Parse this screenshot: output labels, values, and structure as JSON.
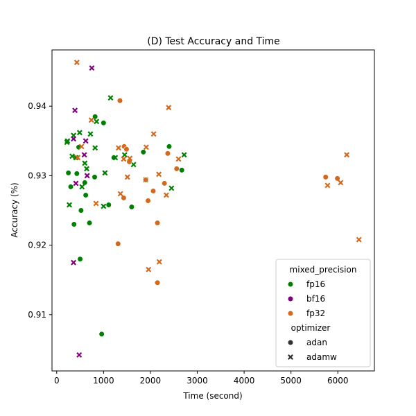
{
  "chart_data": {
    "type": "scatter",
    "title": "(D) Test Accuracy and Time",
    "xlabel": "Time (second)",
    "ylabel": "Accuracy (%)",
    "xlim": [
      -100,
      6780
    ],
    "ylim": [
      0.9019,
      0.9481
    ],
    "xticks": [
      0,
      1000,
      2000,
      3000,
      4000,
      5000,
      6000
    ],
    "xtick_labels": [
      "0",
      "1000",
      "2000",
      "3000",
      "4000",
      "5000",
      "6000"
    ],
    "yticks": [
      0.91,
      0.92,
      0.93,
      0.94
    ],
    "ytick_labels": [
      "0.91",
      "0.92",
      "0.93",
      "0.94"
    ],
    "grid": false,
    "legend_position": "lower-right",
    "legend": {
      "hue_title": "mixed_precision",
      "hue_entries": [
        {
          "name": "fp16",
          "color": "#008000"
        },
        {
          "name": "bf16",
          "color": "#800080"
        },
        {
          "name": "fp32",
          "color": "#d2691e"
        }
      ],
      "style_title": "optimizer",
      "style_entries": [
        {
          "name": "adan",
          "marker": "circle"
        },
        {
          "name": "adamw",
          "marker": "x"
        }
      ]
    },
    "series": [
      {
        "name": "fp16",
        "optimizer": "adan",
        "points": [
          [
            250,
            0.9304
          ],
          [
            300,
            0.9284
          ],
          [
            370,
            0.923
          ],
          [
            430,
            0.9303
          ],
          [
            470,
            0.9341
          ],
          [
            500,
            0.918
          ],
          [
            520,
            0.925
          ],
          [
            600,
            0.929
          ],
          [
            620,
            0.9272
          ],
          [
            700,
            0.9232
          ],
          [
            810,
            0.9298
          ],
          [
            820,
            0.9385
          ],
          [
            1000,
            0.9376
          ],
          [
            1110,
            0.9258
          ],
          [
            1220,
            0.9326
          ],
          [
            1600,
            0.9255
          ],
          [
            1850,
            0.9334
          ],
          [
            2400,
            0.9342
          ],
          [
            2670,
            0.9308
          ],
          [
            960,
            0.9072
          ]
        ]
      },
      {
        "name": "fp16",
        "optimizer": "adamw",
        "points": [
          [
            220,
            0.9348
          ],
          [
            230,
            0.935
          ],
          [
            270,
            0.9258
          ],
          [
            330,
            0.9328
          ],
          [
            360,
            0.9358
          ],
          [
            410,
            0.9326
          ],
          [
            490,
            0.9362
          ],
          [
            540,
            0.9284
          ],
          [
            600,
            0.9318
          ],
          [
            640,
            0.931
          ],
          [
            720,
            0.936
          ],
          [
            820,
            0.934
          ],
          [
            850,
            0.9378
          ],
          [
            1000,
            0.9256
          ],
          [
            1030,
            0.9304
          ],
          [
            1150,
            0.9412
          ],
          [
            1250,
            0.9326
          ],
          [
            1450,
            0.933
          ],
          [
            1640,
            0.9316
          ],
          [
            1900,
            0.9294
          ],
          [
            2450,
            0.9282
          ],
          [
            2720,
            0.933
          ]
        ]
      },
      {
        "name": "bf16",
        "optimizer": "adamw",
        "points": [
          [
            360,
            0.9175
          ],
          [
            360,
            0.9353
          ],
          [
            390,
            0.9394
          ],
          [
            410,
            0.9289
          ],
          [
            480,
            0.9042
          ],
          [
            590,
            0.933
          ],
          [
            620,
            0.935
          ],
          [
            650,
            0.93
          ],
          [
            750,
            0.9455
          ]
        ]
      },
      {
        "name": "fp32",
        "optimizer": "adan",
        "points": [
          [
            1310,
            0.9202
          ],
          [
            1350,
            0.9408
          ],
          [
            1430,
            0.9268
          ],
          [
            1440,
            0.9342
          ],
          [
            1490,
            0.9338
          ],
          [
            1550,
            0.932
          ],
          [
            1900,
            0.9294
          ],
          [
            1950,
            0.9264
          ],
          [
            2060,
            0.9278
          ],
          [
            2150,
            0.9232
          ],
          [
            2150,
            0.9146
          ],
          [
            2300,
            0.9289
          ],
          [
            2370,
            0.9332
          ],
          [
            2560,
            0.931
          ],
          [
            5740,
            0.9298
          ],
          [
            5990,
            0.9296
          ]
        ]
      },
      {
        "name": "fp32",
        "optimizer": "adamw",
        "points": [
          [
            430,
            0.9463
          ],
          [
            450,
            0.9326
          ],
          [
            530,
            0.9342
          ],
          [
            740,
            0.938
          ],
          [
            840,
            0.926
          ],
          [
            1320,
            0.934
          ],
          [
            1360,
            0.9274
          ],
          [
            1430,
            0.9324
          ],
          [
            1510,
            0.9298
          ],
          [
            1560,
            0.9325
          ],
          [
            1910,
            0.9341
          ],
          [
            1960,
            0.9165
          ],
          [
            2070,
            0.936
          ],
          [
            2180,
            0.9302
          ],
          [
            2190,
            0.9176
          ],
          [
            2340,
            0.9272
          ],
          [
            2390,
            0.9398
          ],
          [
            2600,
            0.9324
          ],
          [
            5780,
            0.9286
          ],
          [
            6060,
            0.929
          ],
          [
            6190,
            0.933
          ],
          [
            6450,
            0.9208
          ]
        ]
      }
    ]
  }
}
